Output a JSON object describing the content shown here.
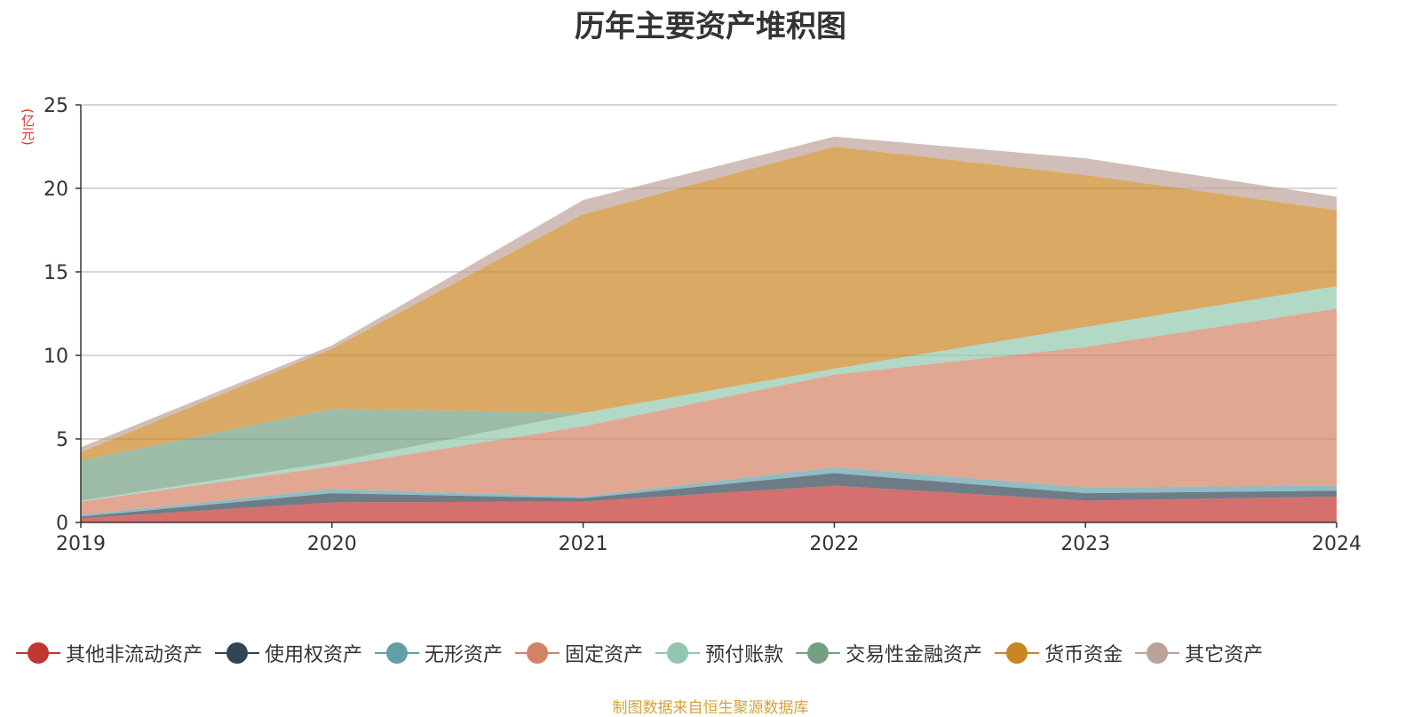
{
  "chart_data": {
    "type": "area",
    "stacked": true,
    "title": "历年主要资产堆积图",
    "unit_label": "(亿元)",
    "categories": [
      "2019",
      "2020",
      "2021",
      "2022",
      "2023",
      "2024"
    ],
    "ylim": [
      0,
      25
    ],
    "yticks": [
      0,
      5,
      10,
      15,
      20,
      25
    ],
    "grid": true,
    "legend_position": "bottom",
    "series": [
      {
        "name": "其他非流动资产",
        "color": "#c23531",
        "values": [
          0.25,
          1.2,
          1.25,
          2.2,
          1.3,
          1.55
        ]
      },
      {
        "name": "使用权资产",
        "color": "#2f4554",
        "values": [
          0.1,
          0.55,
          0.2,
          0.75,
          0.45,
          0.35
        ]
      },
      {
        "name": "无形资产",
        "color": "#61a0a8",
        "values": [
          0.1,
          0.25,
          0.1,
          0.35,
          0.35,
          0.3
        ]
      },
      {
        "name": "固定资产",
        "color": "#d48265",
        "values": [
          0.8,
          1.35,
          4.2,
          5.55,
          8.4,
          10.6
        ]
      },
      {
        "name": "预付账款",
        "color": "#91c7ae",
        "values": [
          0.05,
          0.25,
          0.8,
          0.35,
          1.2,
          1.35
        ]
      },
      {
        "name": "交易性金融资产",
        "color": "#749f83",
        "values": [
          2.4,
          3.2,
          0.0,
          0.0,
          0.0,
          0.0
        ]
      },
      {
        "name": "货币资金",
        "color": "#ca8622",
        "values": [
          0.5,
          3.6,
          11.9,
          13.3,
          9.1,
          4.55
        ]
      },
      {
        "name": "其它资产",
        "color": "#bda29a",
        "values": [
          0.3,
          0.2,
          0.85,
          0.6,
          1.0,
          0.8
        ]
      }
    ]
  },
  "footer": {
    "source": "制图数据来自恒生聚源数据库"
  }
}
